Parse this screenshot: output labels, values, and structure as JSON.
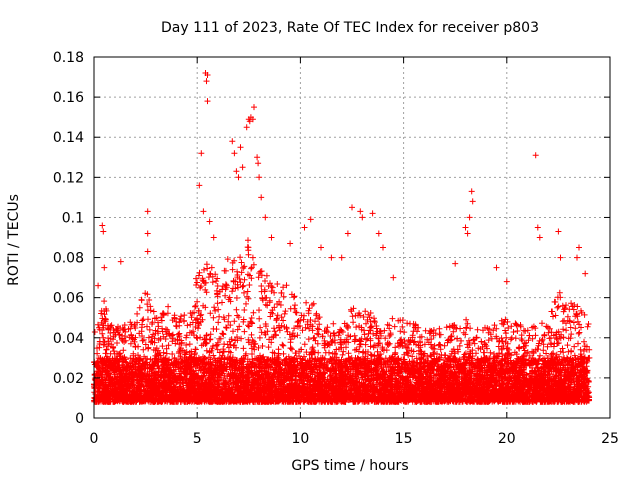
{
  "chart_data": {
    "type": "scatter",
    "title": "Day 111 of 2023, Rate Of TEC Index for receiver p803",
    "xlabel": "GPS time / hours",
    "ylabel": "ROTI / TECUs",
    "xlim": [
      0,
      25
    ],
    "ylim": [
      0,
      0.18
    ],
    "xticks": [
      0,
      5,
      10,
      15,
      20,
      25
    ],
    "xtick_labels": [
      "0",
      "5",
      "10",
      "15",
      "20",
      "25"
    ],
    "yticks": [
      0,
      0.02,
      0.04,
      0.06,
      0.08,
      0.1,
      0.12,
      0.14,
      0.16,
      0.18
    ],
    "ytick_labels": [
      "0",
      "0.02",
      "0.04",
      "0.06",
      "0.08",
      "0.1",
      "0.12",
      "0.14",
      "0.16",
      "0.18"
    ],
    "grid": true,
    "marker": "+",
    "series": [
      {
        "name": "ROTI",
        "color": "#ff0000",
        "x_range": [
          0,
          24
        ],
        "band_points": [
          [
            0.0,
            0.045
          ],
          [
            0.5,
            0.06
          ],
          [
            1.0,
            0.045
          ],
          [
            2.0,
            0.05
          ],
          [
            2.5,
            0.065
          ],
          [
            3.0,
            0.05
          ],
          [
            4.0,
            0.06
          ],
          [
            4.5,
            0.05
          ],
          [
            5.0,
            0.075
          ],
          [
            5.5,
            0.08
          ],
          [
            6.0,
            0.07
          ],
          [
            6.5,
            0.085
          ],
          [
            7.0,
            0.08
          ],
          [
            7.5,
            0.09
          ],
          [
            8.0,
            0.075
          ],
          [
            8.5,
            0.07
          ],
          [
            9.0,
            0.07
          ],
          [
            9.5,
            0.065
          ],
          [
            10.0,
            0.055
          ],
          [
            10.5,
            0.06
          ],
          [
            11.0,
            0.05
          ],
          [
            12.0,
            0.045
          ],
          [
            12.5,
            0.06
          ],
          [
            13.0,
            0.055
          ],
          [
            14.0,
            0.05
          ],
          [
            15.0,
            0.05
          ],
          [
            16.0,
            0.045
          ],
          [
            17.0,
            0.045
          ],
          [
            18.0,
            0.05
          ],
          [
            19.0,
            0.045
          ],
          [
            20.0,
            0.05
          ],
          [
            21.0,
            0.045
          ],
          [
            22.0,
            0.05
          ],
          [
            22.5,
            0.065
          ],
          [
            23.0,
            0.06
          ],
          [
            24.0,
            0.05
          ]
        ],
        "outliers": [
          [
            0.4,
            0.096
          ],
          [
            0.45,
            0.093
          ],
          [
            0.5,
            0.075
          ],
          [
            0.2,
            0.066
          ],
          [
            1.3,
            0.078
          ],
          [
            2.6,
            0.103
          ],
          [
            2.6,
            0.092
          ],
          [
            2.6,
            0.083
          ],
          [
            5.2,
            0.132
          ],
          [
            5.4,
            0.172
          ],
          [
            5.45,
            0.168
          ],
          [
            5.5,
            0.171
          ],
          [
            5.5,
            0.158
          ],
          [
            5.1,
            0.116
          ],
          [
            5.3,
            0.103
          ],
          [
            5.6,
            0.098
          ],
          [
            5.8,
            0.09
          ],
          [
            6.7,
            0.138
          ],
          [
            6.8,
            0.132
          ],
          [
            6.9,
            0.123
          ],
          [
            7.0,
            0.12
          ],
          [
            7.2,
            0.125
          ],
          [
            7.1,
            0.135
          ],
          [
            7.5,
            0.149
          ],
          [
            7.55,
            0.148
          ],
          [
            7.6,
            0.15
          ],
          [
            7.7,
            0.149
          ],
          [
            7.75,
            0.155
          ],
          [
            7.4,
            0.145
          ],
          [
            7.9,
            0.13
          ],
          [
            7.95,
            0.127
          ],
          [
            8.0,
            0.12
          ],
          [
            8.1,
            0.11
          ],
          [
            8.3,
            0.1
          ],
          [
            8.6,
            0.09
          ],
          [
            9.5,
            0.087
          ],
          [
            10.2,
            0.095
          ],
          [
            10.5,
            0.099
          ],
          [
            11.0,
            0.085
          ],
          [
            11.5,
            0.08
          ],
          [
            12.0,
            0.08
          ],
          [
            12.3,
            0.092
          ],
          [
            12.5,
            0.105
          ],
          [
            12.9,
            0.103
          ],
          [
            13.0,
            0.1
          ],
          [
            13.5,
            0.102
          ],
          [
            13.8,
            0.092
          ],
          [
            14.0,
            0.085
          ],
          [
            14.5,
            0.07
          ],
          [
            17.5,
            0.077
          ],
          [
            18.0,
            0.095
          ],
          [
            18.2,
            0.1
          ],
          [
            18.3,
            0.113
          ],
          [
            18.35,
            0.108
          ],
          [
            18.1,
            0.092
          ],
          [
            19.5,
            0.075
          ],
          [
            20.0,
            0.068
          ],
          [
            21.4,
            0.131
          ],
          [
            21.5,
            0.095
          ],
          [
            21.6,
            0.09
          ],
          [
            22.5,
            0.093
          ],
          [
            22.6,
            0.08
          ],
          [
            23.5,
            0.085
          ],
          [
            23.4,
            0.08
          ],
          [
            23.8,
            0.072
          ]
        ]
      }
    ]
  }
}
